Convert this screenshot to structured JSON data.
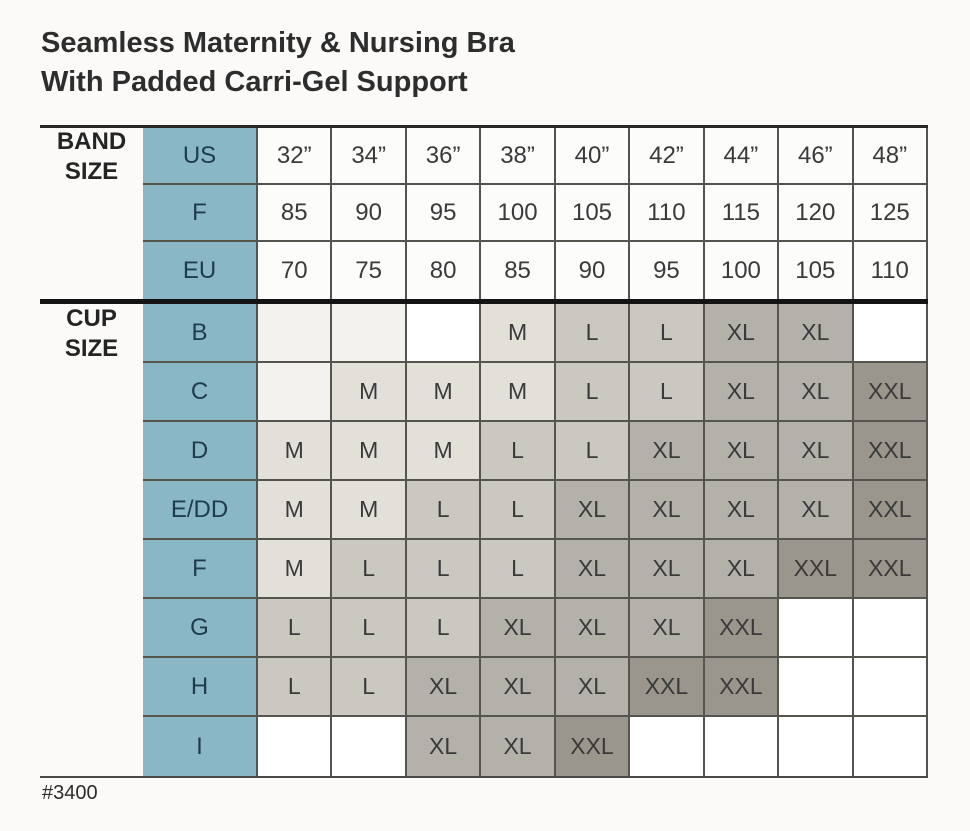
{
  "title": {
    "line1": "Seamless Maternity & Nursing Bra",
    "line2": "With Padded Carri-Gel Support"
  },
  "sku": "#3400",
  "band_size_label": "BAND SIZE",
  "cup_size_label": "CUP SIZE",
  "colors": {
    "teal": "#89b7c6",
    "teal_text": "#1e3c4c",
    "header_cell_bg": "#fcfcfb",
    "tone_m": "#e3e0da",
    "tone_l": "#cbc8c2",
    "tone_xl": "#b4b1ab",
    "tone_xxl": "#9a968e",
    "tone_light": "#f3f2ef",
    "tone_white": "#ffffff",
    "grid_border": "#56544f",
    "heavy_rule": "#141414"
  },
  "chart_data": {
    "type": "table",
    "title": "Seamless Maternity & Nursing Bra With Padded Carri-Gel Support",
    "band_rows": [
      {
        "label": "US",
        "values": [
          "32”",
          "34”",
          "36”",
          "38”",
          "40”",
          "42”",
          "44”",
          "46”",
          "48”"
        ]
      },
      {
        "label": "F",
        "values": [
          "85",
          "90",
          "95",
          "100",
          "105",
          "110",
          "115",
          "120",
          "125"
        ]
      },
      {
        "label": "EU",
        "values": [
          "70",
          "75",
          "80",
          "85",
          "90",
          "95",
          "100",
          "105",
          "110"
        ]
      }
    ],
    "cup_rows": [
      {
        "label": "B",
        "values": [
          "",
          "",
          "",
          "M",
          "L",
          "L",
          "XL",
          "XL",
          ""
        ],
        "tones": [
          "light",
          "light",
          "white",
          "m",
          "l",
          "l",
          "xl",
          "xl",
          "white"
        ]
      },
      {
        "label": "C",
        "values": [
          "",
          "M",
          "M",
          "M",
          "L",
          "L",
          "XL",
          "XL",
          "XXL"
        ],
        "tones": [
          "light",
          "m",
          "m",
          "m",
          "l",
          "l",
          "xl",
          "xl",
          "xxl"
        ]
      },
      {
        "label": "D",
        "values": [
          "M",
          "M",
          "M",
          "L",
          "L",
          "XL",
          "XL",
          "XL",
          "XXL"
        ],
        "tones": [
          "m",
          "m",
          "m",
          "l",
          "l",
          "xl",
          "xl",
          "xl",
          "xxl"
        ]
      },
      {
        "label": "E/DD",
        "values": [
          "M",
          "M",
          "L",
          "L",
          "XL",
          "XL",
          "XL",
          "XL",
          "XXL"
        ],
        "tones": [
          "m",
          "m",
          "l",
          "l",
          "xl",
          "xl",
          "xl",
          "xl",
          "xxl"
        ]
      },
      {
        "label": "F",
        "values": [
          "M",
          "L",
          "L",
          "L",
          "XL",
          "XL",
          "XL",
          "XXL",
          "XXL"
        ],
        "tones": [
          "m",
          "l",
          "l",
          "l",
          "xl",
          "xl",
          "xl",
          "xxl",
          "xxl"
        ]
      },
      {
        "label": "G",
        "values": [
          "L",
          "L",
          "L",
          "XL",
          "XL",
          "XL",
          "XXL",
          "",
          ""
        ],
        "tones": [
          "l",
          "l",
          "l",
          "xl",
          "xl",
          "xl",
          "xxl",
          "white",
          "white"
        ]
      },
      {
        "label": "H",
        "values": [
          "L",
          "L",
          "XL",
          "XL",
          "XL",
          "XXL",
          "XXL",
          "",
          ""
        ],
        "tones": [
          "l",
          "l",
          "xl",
          "xl",
          "xl",
          "xxl",
          "xxl",
          "white",
          "white"
        ]
      },
      {
        "label": "I",
        "values": [
          "",
          "",
          "XL",
          "XL",
          "XXL",
          "",
          "",
          "",
          ""
        ],
        "tones": [
          "white",
          "white",
          "xl",
          "xl",
          "xxl",
          "white",
          "white",
          "white",
          "white"
        ]
      }
    ]
  }
}
